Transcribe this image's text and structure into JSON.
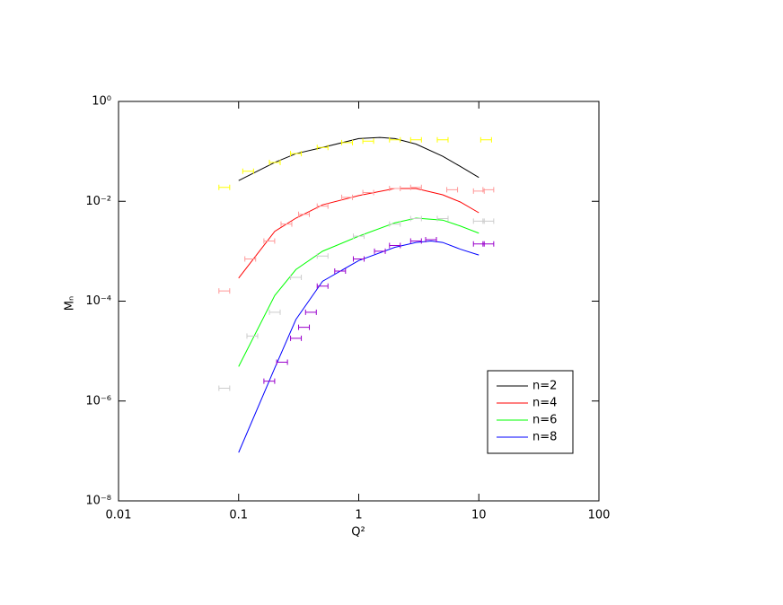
{
  "chart_data": {
    "type": "line",
    "x_label": "Q²",
    "y_label": "Mₙ",
    "x_scale": "log",
    "y_scale": "log",
    "xlim": [
      0.01,
      100
    ],
    "ylim": [
      1e-08,
      1
    ],
    "xticks": [
      0.01,
      0.1,
      1,
      10,
      100
    ],
    "yticks": [
      {
        "value": 1e-08,
        "label": "10⁻⁸"
      },
      {
        "value": 1e-06,
        "label": "10⁻⁶"
      },
      {
        "value": 0.0001,
        "label": "10⁻⁴"
      },
      {
        "value": 0.01,
        "label": "10⁻²"
      },
      {
        "value": 1,
        "label": "10⁰"
      }
    ],
    "legend": "lower-right",
    "series": [
      {
        "name": "n=2",
        "type": "line",
        "color": "#000000",
        "x": [
          0.1,
          0.2,
          0.3,
          0.5,
          1,
          1.5,
          2,
          3,
          5,
          7,
          10
        ],
        "values": [
          0.026,
          0.06,
          0.09,
          0.12,
          0.18,
          0.19,
          0.18,
          0.14,
          0.08,
          0.05,
          0.03
        ]
      },
      {
        "name": "n=4",
        "type": "line",
        "color": "#ff0000",
        "x": [
          0.1,
          0.2,
          0.3,
          0.5,
          1,
          2,
          3,
          5,
          7,
          10
        ],
        "values": [
          0.00029,
          0.0025,
          0.0046,
          0.0085,
          0.013,
          0.018,
          0.018,
          0.0135,
          0.0097,
          0.0059
        ]
      },
      {
        "name": "n=6",
        "type": "line",
        "color": "#00ff00",
        "x": [
          0.1,
          0.2,
          0.3,
          0.5,
          1,
          2,
          3,
          5,
          7,
          10
        ],
        "values": [
          4.9e-06,
          0.00013,
          0.00043,
          0.001,
          0.002,
          0.0037,
          0.0046,
          0.0042,
          0.0032,
          0.0023
        ]
      },
      {
        "name": "n=8",
        "type": "line",
        "color": "#0000ff",
        "x": [
          0.1,
          0.2,
          0.3,
          0.5,
          1,
          2,
          3,
          4,
          5,
          7,
          10
        ],
        "values": [
          9.3e-08,
          4.6e-06,
          4.3e-05,
          0.00025,
          0.00065,
          0.0012,
          0.0015,
          0.0016,
          0.0015,
          0.0011,
          0.00084
        ]
      },
      {
        "type": "scatter",
        "color": "#ffff00",
        "x": [
          0.076,
          0.12,
          0.2,
          0.3,
          0.5,
          0.8,
          1.2,
          2,
          3,
          5,
          11.5
        ],
        "values": [
          0.019,
          0.04,
          0.06,
          0.09,
          0.12,
          0.15,
          0.16,
          0.17,
          0.17,
          0.17,
          0.17
        ]
      },
      {
        "type": "scatter",
        "color": "#ff9999",
        "x": [
          0.076,
          0.125,
          0.18,
          0.25,
          0.35,
          0.5,
          0.8,
          1.2,
          2,
          3,
          6,
          10,
          12
        ],
        "values": [
          0.00016,
          0.0007,
          0.0016,
          0.0035,
          0.0055,
          0.008,
          0.012,
          0.015,
          0.018,
          0.019,
          0.017,
          0.016,
          0.017
        ]
      },
      {
        "type": "scatter",
        "color": "#cccccc",
        "x": [
          0.076,
          0.13,
          0.2,
          0.3,
          0.5,
          1,
          2,
          3,
          5,
          10,
          12
        ],
        "values": [
          1.8e-06,
          2e-05,
          6e-05,
          0.0003,
          0.0008,
          0.002,
          0.0035,
          0.0045,
          0.0045,
          0.004,
          0.004
        ]
      },
      {
        "type": "scatter",
        "color": "#9900cc",
        "x": [
          0.18,
          0.23,
          0.3,
          0.35,
          0.4,
          0.5,
          0.7,
          1,
          1.5,
          2,
          3,
          4,
          10,
          12
        ],
        "values": [
          2.5e-06,
          6e-06,
          1.8e-05,
          3e-05,
          6e-05,
          0.0002,
          0.0004,
          0.0007,
          0.001,
          0.0013,
          0.0016,
          0.0017,
          0.0014,
          0.0014
        ]
      }
    ]
  }
}
